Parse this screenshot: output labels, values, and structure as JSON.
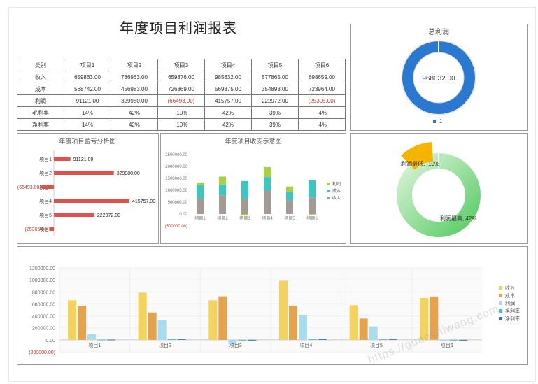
{
  "page_title": "年度项目利润报表",
  "table": {
    "header": [
      "类别",
      "项目1",
      "项目2",
      "项目3",
      "项目4",
      "项目5",
      "项目6"
    ],
    "rows": [
      [
        "收入",
        "659863.00",
        "786963.00",
        "659876.00",
        "985632.00",
        "577865.00",
        "698659.00"
      ],
      [
        "成本",
        "568742.00",
        "456983.00",
        "726369.00",
        "569875.00",
        "354893.00",
        "723964.00"
      ],
      [
        "利润",
        "91121.00",
        "329980.00",
        "(66493.00)",
        "415757.00",
        "222972.00",
        "(25305.00)"
      ],
      [
        "毛利率",
        "14%",
        "42%",
        "-10%",
        "42%",
        "39%",
        "-4%"
      ],
      [
        "净利率",
        "14%",
        "42%",
        "-10%",
        "42%",
        "39%",
        "-4%"
      ]
    ]
  },
  "watermark": "https://guanshiwang.com",
  "colors": {
    "revenue": "#f3d35c",
    "cost": "#e6a34d",
    "profit": "#a8dcef",
    "gross": "#3cc6c2",
    "net": "#2e75b6",
    "loss": "#d9534f",
    "donut": "#2b78d0",
    "green": "#5fcf6c",
    "orange": "#f5b400"
  },
  "chart_data": [
    {
      "id": "total_profit",
      "type": "pie",
      "title": "总利润",
      "center_label": "968032.00",
      "values": [
        968032
      ],
      "legend": [
        "1"
      ],
      "legend_position": "bottom"
    },
    {
      "id": "profit_loss",
      "type": "bar",
      "orientation": "horizontal",
      "title": "年度项目盈亏分析图",
      "categories": [
        "项目1",
        "项目2",
        "项目3",
        "项目4",
        "项目5",
        "项目6"
      ],
      "values": [
        91121,
        329980,
        -66493,
        415757,
        222972,
        -25305
      ],
      "labels": [
        "91121.00",
        "329980.00",
        "(66493.00)",
        "415757.00",
        "222972.00",
        "(25305.00)"
      ]
    },
    {
      "id": "income_expense",
      "type": "bar",
      "stacked": true,
      "title": "年度项目收支示意图",
      "categories": [
        "项目1",
        "项目2",
        "项目3",
        "项目4",
        "项目5",
        "项目6"
      ],
      "series": [
        {
          "name": "收入",
          "values": [
            659863,
            786963,
            659876,
            985632,
            577865,
            698659
          ]
        },
        {
          "name": "成本",
          "values": [
            568742,
            456983,
            726369,
            569875,
            354893,
            723964
          ]
        },
        {
          "name": "利润",
          "values": [
            91121,
            329980,
            -66493,
            415757,
            222972,
            -25305
          ]
        }
      ],
      "legend_order": [
        "利润",
        "成本",
        "收入"
      ],
      "yticks": [
        "2500000.00",
        "2000000.00",
        "1500000.00",
        "1000000.00",
        "500000.00",
        "0.00",
        "(500000.00)"
      ],
      "ylim": [
        -500000,
        2500000
      ],
      "legend_position": "right"
    },
    {
      "id": "margin_donut",
      "type": "pie",
      "labels": [
        "利润最低, -10%",
        "利润最高, 42%"
      ],
      "values": [
        10,
        42
      ]
    },
    {
      "id": "overview",
      "type": "bar",
      "categories": [
        "项目1",
        "项目2",
        "项目3",
        "项目4",
        "项目5",
        "项目6"
      ],
      "series": [
        {
          "name": "收入",
          "values": [
            659863,
            786963,
            659876,
            985632,
            577865,
            698659
          ]
        },
        {
          "name": "成本",
          "values": [
            568742,
            456983,
            726369,
            569875,
            354893,
            723964
          ]
        },
        {
          "name": "利润",
          "values": [
            91121,
            329980,
            -66493,
            415757,
            222972,
            -25305
          ]
        },
        {
          "name": "毛利率",
          "values": [
            0.14,
            0.42,
            -0.1,
            0.42,
            0.39,
            -0.04
          ]
        },
        {
          "name": "净利率",
          "values": [
            0.14,
            0.42,
            -0.1,
            0.42,
            0.39,
            -0.04
          ]
        }
      ],
      "yticks": [
        "1200000.00",
        "1000000.00",
        "800000.00",
        "600000.00",
        "400000.00",
        "200000.00",
        "0.00",
        "(200000.00)"
      ],
      "ylim": [
        -200000,
        1200000
      ],
      "legend_position": "right"
    }
  ]
}
